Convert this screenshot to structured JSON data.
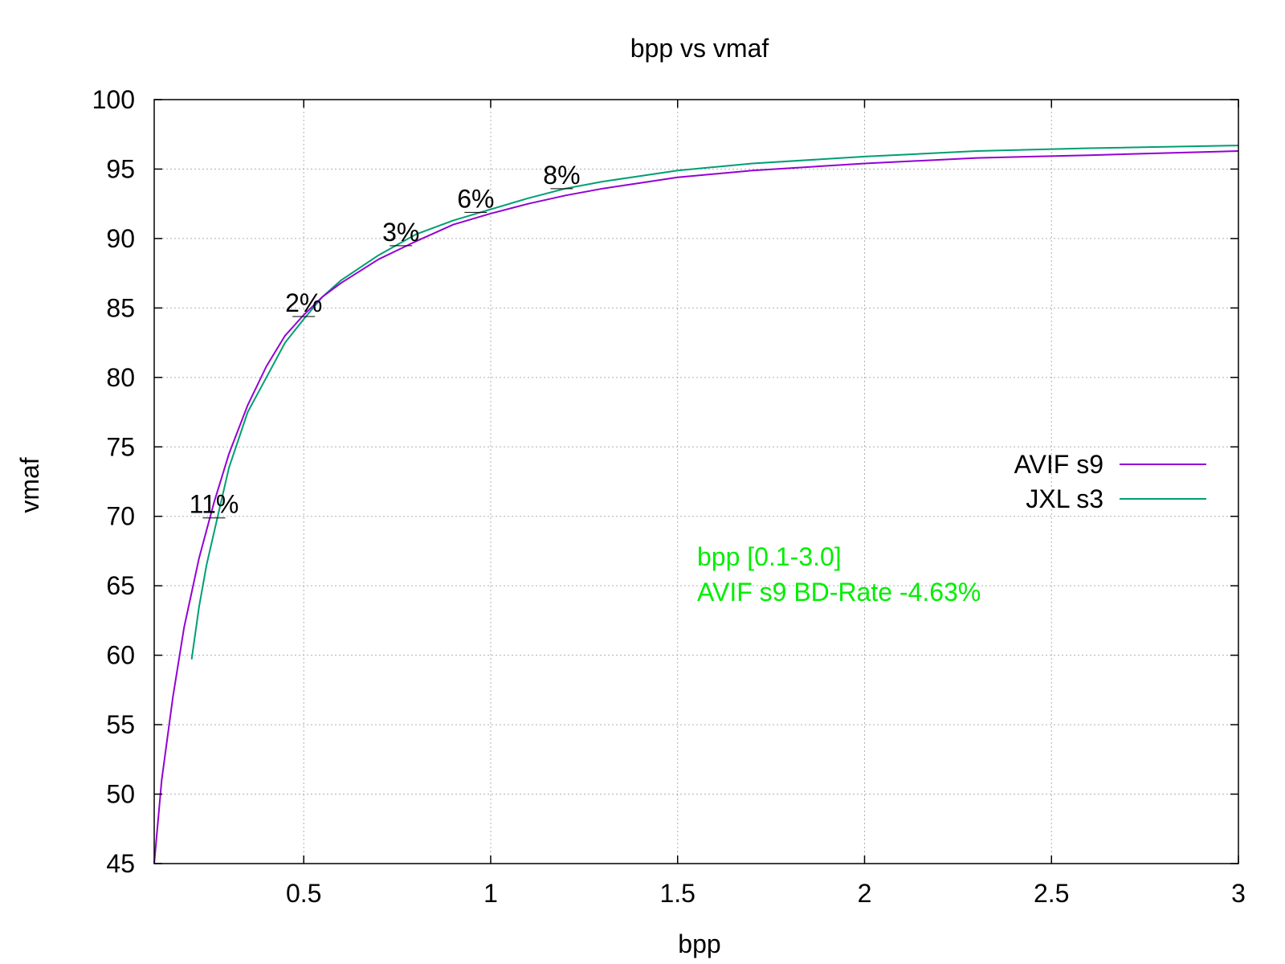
{
  "chart_data": {
    "type": "line",
    "title": "bpp vs vmaf",
    "xlabel": "bpp",
    "ylabel": "vmaf",
    "xlim": [
      0.1,
      3.0
    ],
    "ylim": [
      45,
      100
    ],
    "grid": true,
    "legend_position": "right",
    "x_ticks": [
      0.5,
      1,
      1.5,
      2,
      2.5,
      3
    ],
    "x_tick_labels": [
      "0.5",
      "1",
      "1.5",
      "2",
      "2.5",
      "3"
    ],
    "y_ticks": [
      45,
      50,
      55,
      60,
      65,
      70,
      75,
      80,
      85,
      90,
      95,
      100
    ],
    "y_tick_labels": [
      "45",
      "50",
      "55",
      "60",
      "65",
      "70",
      "75",
      "80",
      "85",
      "90",
      "95",
      "100"
    ],
    "series": [
      {
        "name": "AVIF s9",
        "color": "#9400d3",
        "points": [
          [
            0.1,
            45.0
          ],
          [
            0.12,
            51.0
          ],
          [
            0.15,
            57.0
          ],
          [
            0.18,
            62.0
          ],
          [
            0.22,
            67.0
          ],
          [
            0.26,
            71.0
          ],
          [
            0.3,
            74.5
          ],
          [
            0.35,
            78.0
          ],
          [
            0.4,
            80.8
          ],
          [
            0.45,
            83.0
          ],
          [
            0.5,
            84.5
          ],
          [
            0.55,
            85.8
          ],
          [
            0.6,
            86.8
          ],
          [
            0.7,
            88.5
          ],
          [
            0.8,
            89.8
          ],
          [
            0.9,
            91.0
          ],
          [
            1.0,
            91.8
          ],
          [
            1.1,
            92.5
          ],
          [
            1.2,
            93.1
          ],
          [
            1.3,
            93.6
          ],
          [
            1.4,
            94.0
          ],
          [
            1.5,
            94.4
          ],
          [
            1.7,
            94.9
          ],
          [
            2.0,
            95.4
          ],
          [
            2.3,
            95.8
          ],
          [
            2.6,
            96.0
          ],
          [
            3.0,
            96.3
          ]
        ]
      },
      {
        "name": "JXL s3",
        "color": "#009e73",
        "points": [
          [
            0.2,
            59.7
          ],
          [
            0.22,
            63.5
          ],
          [
            0.24,
            66.5
          ],
          [
            0.27,
            70.0
          ],
          [
            0.3,
            73.5
          ],
          [
            0.35,
            77.5
          ],
          [
            0.4,
            80.0
          ],
          [
            0.45,
            82.5
          ],
          [
            0.5,
            84.2
          ],
          [
            0.55,
            85.8
          ],
          [
            0.6,
            87.0
          ],
          [
            0.7,
            88.8
          ],
          [
            0.8,
            90.3
          ],
          [
            0.9,
            91.3
          ],
          [
            1.0,
            92.1
          ],
          [
            1.1,
            92.9
          ],
          [
            1.2,
            93.6
          ],
          [
            1.3,
            94.1
          ],
          [
            1.4,
            94.5
          ],
          [
            1.5,
            94.9
          ],
          [
            1.7,
            95.4
          ],
          [
            2.0,
            95.9
          ],
          [
            2.3,
            96.3
          ],
          [
            2.6,
            96.5
          ],
          [
            3.0,
            96.7
          ]
        ]
      }
    ],
    "annotations": [
      {
        "text": "11%",
        "x": 0.26,
        "y": 70.0
      },
      {
        "text": "2%",
        "x": 0.5,
        "y": 84.5
      },
      {
        "text": "3%",
        "x": 0.76,
        "y": 89.6
      },
      {
        "text": "6%",
        "x": 0.96,
        "y": 92.0
      },
      {
        "text": "8%",
        "x": 1.19,
        "y": 93.7
      }
    ],
    "info_text": {
      "color": "#00ee00",
      "lines": [
        "bpp [0.1-3.0]",
        "AVIF s9 BD-Rate -4.63%"
      ]
    }
  }
}
